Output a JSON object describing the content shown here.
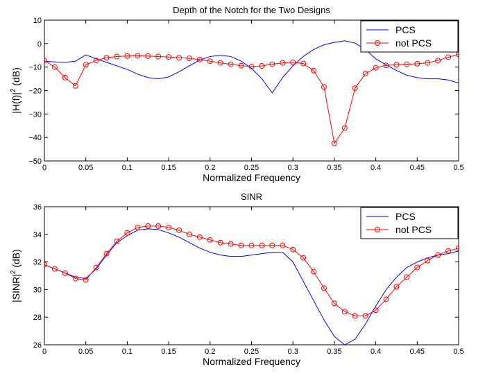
{
  "chart_data": [
    {
      "type": "line",
      "title": "Depth of the Notch for the Two Designs",
      "xlabel": "Normalized Frequency",
      "ylabel_main": "|H(f)|",
      "ylabel_sup": "2",
      "ylabel_unit": " (dB)",
      "xlim": [
        0,
        0.5
      ],
      "ylim": [
        -50,
        10
      ],
      "xticks": [
        0,
        0.05,
        0.1,
        0.15,
        0.2,
        0.25,
        0.3,
        0.35,
        0.4,
        0.45,
        0.5
      ],
      "xtick_labels": [
        "0",
        "0.05",
        "0.1",
        "0.15",
        "0.2",
        "0.25",
        "0.3",
        "0.35",
        "0.4",
        "0.45",
        "0.5"
      ],
      "yticks": [
        -50,
        -40,
        -30,
        -20,
        -10,
        0,
        10
      ],
      "ytick_labels": [
        "−50",
        "−40",
        "−30",
        "−20",
        "−10",
        "0",
        "10"
      ],
      "legend_position": "top-right",
      "series": [
        {
          "name": "PCS",
          "color": "#0000ff",
          "marker": "none",
          "x": [
            0,
            0.0125,
            0.025,
            0.0375,
            0.05,
            0.0625,
            0.075,
            0.0875,
            0.1,
            0.1125,
            0.125,
            0.1375,
            0.15,
            0.1625,
            0.175,
            0.1875,
            0.2,
            0.2125,
            0.225,
            0.2375,
            0.25,
            0.2625,
            0.275,
            0.2875,
            0.3,
            0.3125,
            0.325,
            0.3375,
            0.35,
            0.3625,
            0.375,
            0.3875,
            0.4,
            0.4125,
            0.425,
            0.4375,
            0.45,
            0.4625,
            0.475,
            0.4875,
            0.5
          ],
          "y": [
            -7.5,
            -7.8,
            -8.0,
            -7.5,
            -4.8,
            -6.5,
            -8.0,
            -9.5,
            -11.0,
            -13.0,
            -14.5,
            -15.0,
            -14.2,
            -12.0,
            -9.5,
            -7.0,
            -5.5,
            -5.0,
            -5.5,
            -7.5,
            -10.5,
            -15.0,
            -21.0,
            -14.5,
            -9.5,
            -5.5,
            -2.5,
            -0.5,
            0.5,
            1.2,
            0.2,
            -2.5,
            -6.5,
            -9.0,
            -11.5,
            -13.5,
            -14.5,
            -15.0,
            -15.0,
            -15.5,
            -16.8
          ]
        },
        {
          "name": "not PCS",
          "color": "#ff0000",
          "marker": "circle",
          "x": [
            0,
            0.0125,
            0.025,
            0.0375,
            0.05,
            0.0625,
            0.075,
            0.0875,
            0.1,
            0.1125,
            0.125,
            0.1375,
            0.15,
            0.1625,
            0.175,
            0.1875,
            0.2,
            0.2125,
            0.225,
            0.2375,
            0.25,
            0.2625,
            0.275,
            0.2875,
            0.3,
            0.3125,
            0.325,
            0.3375,
            0.35,
            0.3625,
            0.375,
            0.3875,
            0.4,
            0.4125,
            0.425,
            0.4375,
            0.45,
            0.4625,
            0.475,
            0.4875,
            0.5
          ],
          "y": [
            -7.2,
            -10.0,
            -14.5,
            -18.0,
            -9.0,
            -7.2,
            -6.0,
            -5.5,
            -5.3,
            -5.2,
            -5.3,
            -5.5,
            -5.7,
            -6.0,
            -6.3,
            -6.8,
            -7.5,
            -8.2,
            -8.8,
            -9.4,
            -9.8,
            -9.5,
            -8.8,
            -8.2,
            -8.0,
            -8.5,
            -11.5,
            -18.5,
            -42.5,
            -36.0,
            -19.0,
            -12.8,
            -10.3,
            -9.3,
            -9.0,
            -8.8,
            -8.6,
            -8.2,
            -7.2,
            -5.8,
            -4.6
          ]
        }
      ]
    },
    {
      "type": "line",
      "title": "SINR",
      "xlabel": "Normalized Frequency",
      "ylabel_main": "|SINR|",
      "ylabel_sup": "2",
      "ylabel_unit": " (dB)",
      "xlim": [
        0,
        0.5
      ],
      "ylim": [
        26,
        36
      ],
      "xticks": [
        0,
        0.05,
        0.1,
        0.15,
        0.2,
        0.25,
        0.3,
        0.35,
        0.4,
        0.45,
        0.5
      ],
      "xtick_labels": [
        "0",
        "0.05",
        "0.1",
        "0.15",
        "0.2",
        "0.25",
        "0.3",
        "0.35",
        "0.4",
        "0.45",
        "0.5"
      ],
      "yticks": [
        26,
        28,
        30,
        32,
        34,
        36
      ],
      "ytick_labels": [
        "26",
        "28",
        "30",
        "32",
        "34",
        "36"
      ],
      "legend_position": "top-right",
      "series": [
        {
          "name": "PCS",
          "color": "#0000ff",
          "marker": "none",
          "x": [
            0,
            0.0125,
            0.025,
            0.0375,
            0.05,
            0.0625,
            0.075,
            0.0875,
            0.1,
            0.1125,
            0.125,
            0.1375,
            0.15,
            0.1625,
            0.175,
            0.1875,
            0.2,
            0.2125,
            0.225,
            0.2375,
            0.25,
            0.2625,
            0.275,
            0.2875,
            0.3,
            0.3125,
            0.325,
            0.3375,
            0.35,
            0.3625,
            0.375,
            0.3875,
            0.4,
            0.4125,
            0.425,
            0.4375,
            0.45,
            0.4625,
            0.475,
            0.4875,
            0.5
          ],
          "y": [
            31.8,
            31.5,
            31.2,
            30.9,
            30.8,
            31.5,
            32.5,
            33.4,
            33.9,
            34.3,
            34.4,
            34.35,
            34.1,
            33.8,
            33.4,
            33.0,
            32.7,
            32.5,
            32.4,
            32.4,
            32.5,
            32.6,
            32.7,
            32.7,
            32.0,
            30.6,
            29.2,
            27.8,
            26.6,
            26.0,
            26.4,
            27.5,
            28.8,
            30.0,
            30.9,
            31.6,
            32.0,
            32.3,
            32.5,
            32.6,
            32.8
          ]
        },
        {
          "name": "not PCS",
          "color": "#ff0000",
          "marker": "circle",
          "x": [
            0,
            0.0125,
            0.025,
            0.0375,
            0.05,
            0.0625,
            0.075,
            0.0875,
            0.1,
            0.1125,
            0.125,
            0.1375,
            0.15,
            0.1625,
            0.175,
            0.1875,
            0.2,
            0.2125,
            0.225,
            0.2375,
            0.25,
            0.2625,
            0.275,
            0.2875,
            0.3,
            0.3125,
            0.325,
            0.3375,
            0.35,
            0.3625,
            0.375,
            0.3875,
            0.4,
            0.4125,
            0.425,
            0.4375,
            0.45,
            0.4625,
            0.475,
            0.4875,
            0.5
          ],
          "y": [
            31.8,
            31.5,
            31.2,
            30.8,
            30.7,
            31.6,
            32.6,
            33.5,
            34.1,
            34.5,
            34.6,
            34.6,
            34.5,
            34.3,
            34.0,
            33.8,
            33.6,
            33.4,
            33.3,
            33.2,
            33.2,
            33.2,
            33.2,
            33.2,
            32.9,
            32.3,
            31.3,
            30.1,
            29.0,
            28.4,
            28.1,
            28.1,
            28.5,
            29.3,
            30.2,
            30.9,
            31.6,
            32.1,
            32.5,
            32.8,
            33.0
          ]
        }
      ]
    }
  ]
}
